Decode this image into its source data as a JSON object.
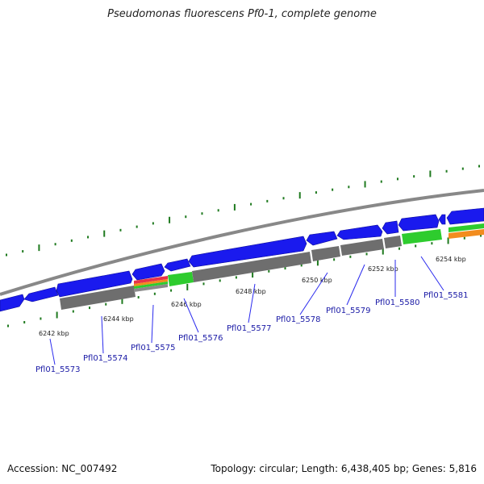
{
  "title": "Pseudomonas fluorescens Pf0-1, complete genome",
  "footer": {
    "accession": "Accession: NC_007492",
    "topology": "Topology: circular; Length: 6,438,405 bp; Genes: 5,816"
  },
  "colors": {
    "forward_gene": "#1a1aee",
    "reverse_gene": "#1a1aee",
    "backbone": "#888888",
    "cog_gray": "#6e6e6e",
    "cog_green": "#2ecc2e",
    "cog_orange": "#f28c1e",
    "cog_red": "#e8324a",
    "tick_green": "#1f7a1f",
    "label_blue": "#1a1aa6",
    "leader_blue": "#2a2aee"
  },
  "tick_labels": [
    "6242 kbp",
    "6244 kbp",
    "6246 kbp",
    "6248 kbp",
    "6250 kbp",
    "6252 kbp",
    "6254 kbp"
  ],
  "genes": [
    "Pfl01_5573",
    "Pfl01_5574",
    "Pfl01_5575",
    "Pfl01_5576",
    "Pfl01_5577",
    "Pfl01_5578",
    "Pfl01_5579",
    "Pfl01_5580",
    "Pfl01_5581"
  ]
}
